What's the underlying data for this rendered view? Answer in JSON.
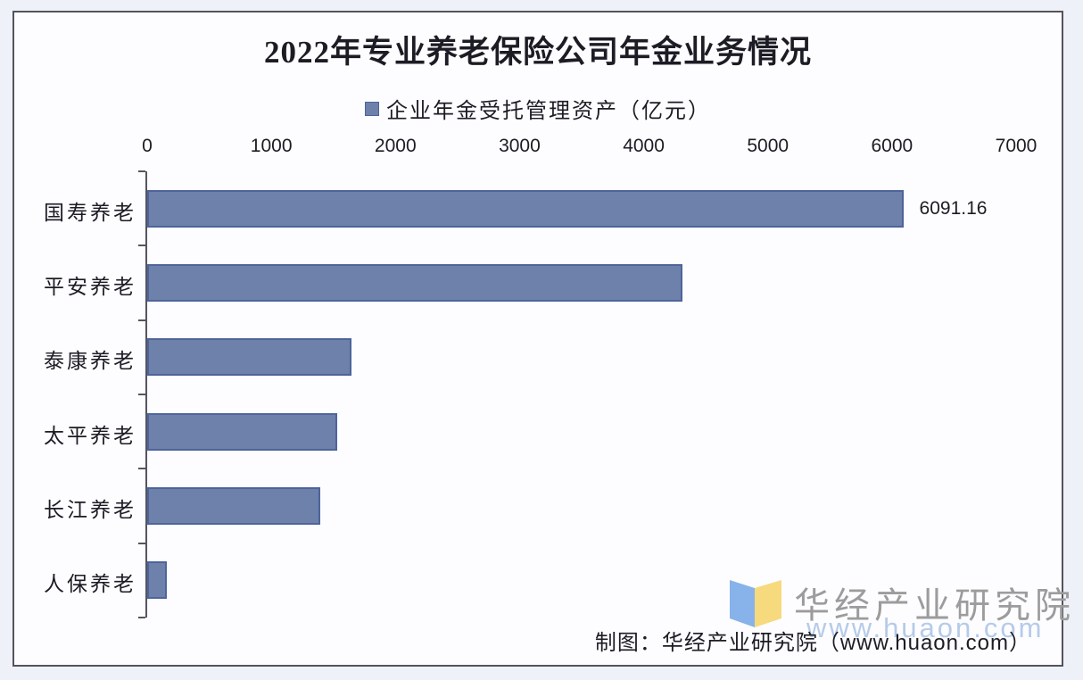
{
  "chart": {
    "title": "2022年专业养老保险公司年金业务情况",
    "legend_label": "企业年金受托管理资产（亿元）"
  },
  "chart_data": {
    "type": "bar",
    "orientation": "horizontal",
    "title": "2022年专业养老保险公司年金业务情况",
    "legend": [
      "企业年金受托管理资产（亿元）"
    ],
    "legend_position": "top",
    "axis_position": "top",
    "grid": false,
    "categories": [
      "国寿养老",
      "平安养老",
      "泰康养老",
      "太平养老",
      "长江养老",
      "人保养老"
    ],
    "values": [
      6091.16,
      4310,
      1645,
      1530,
      1395,
      160
    ],
    "value_labels": [
      "6091.16",
      null,
      null,
      null,
      null,
      null
    ],
    "xlabel": "",
    "ylabel": "",
    "unit": "亿元",
    "xlim": [
      0,
      7000
    ],
    "x_ticks": [
      0,
      1000,
      2000,
      3000,
      4000,
      5000,
      6000,
      7000
    ]
  },
  "footer": {
    "credit": "制图：华经产业研究院（www.huaon.com）"
  },
  "watermark": {
    "name": "华经产业研究院",
    "url": "www.huaon.com"
  },
  "colors": {
    "bar_fill": "#6d81ab",
    "bar_border": "#4e649a",
    "axis": "#545461",
    "text": "#1c1c24",
    "background": "#eff1f8",
    "card": "#fdfdff",
    "watermark_name": "#9c9c9c",
    "watermark_url": "#b5cbe9",
    "logo_blue": "#88b2ea",
    "logo_yellow": "#f7d97e"
  }
}
